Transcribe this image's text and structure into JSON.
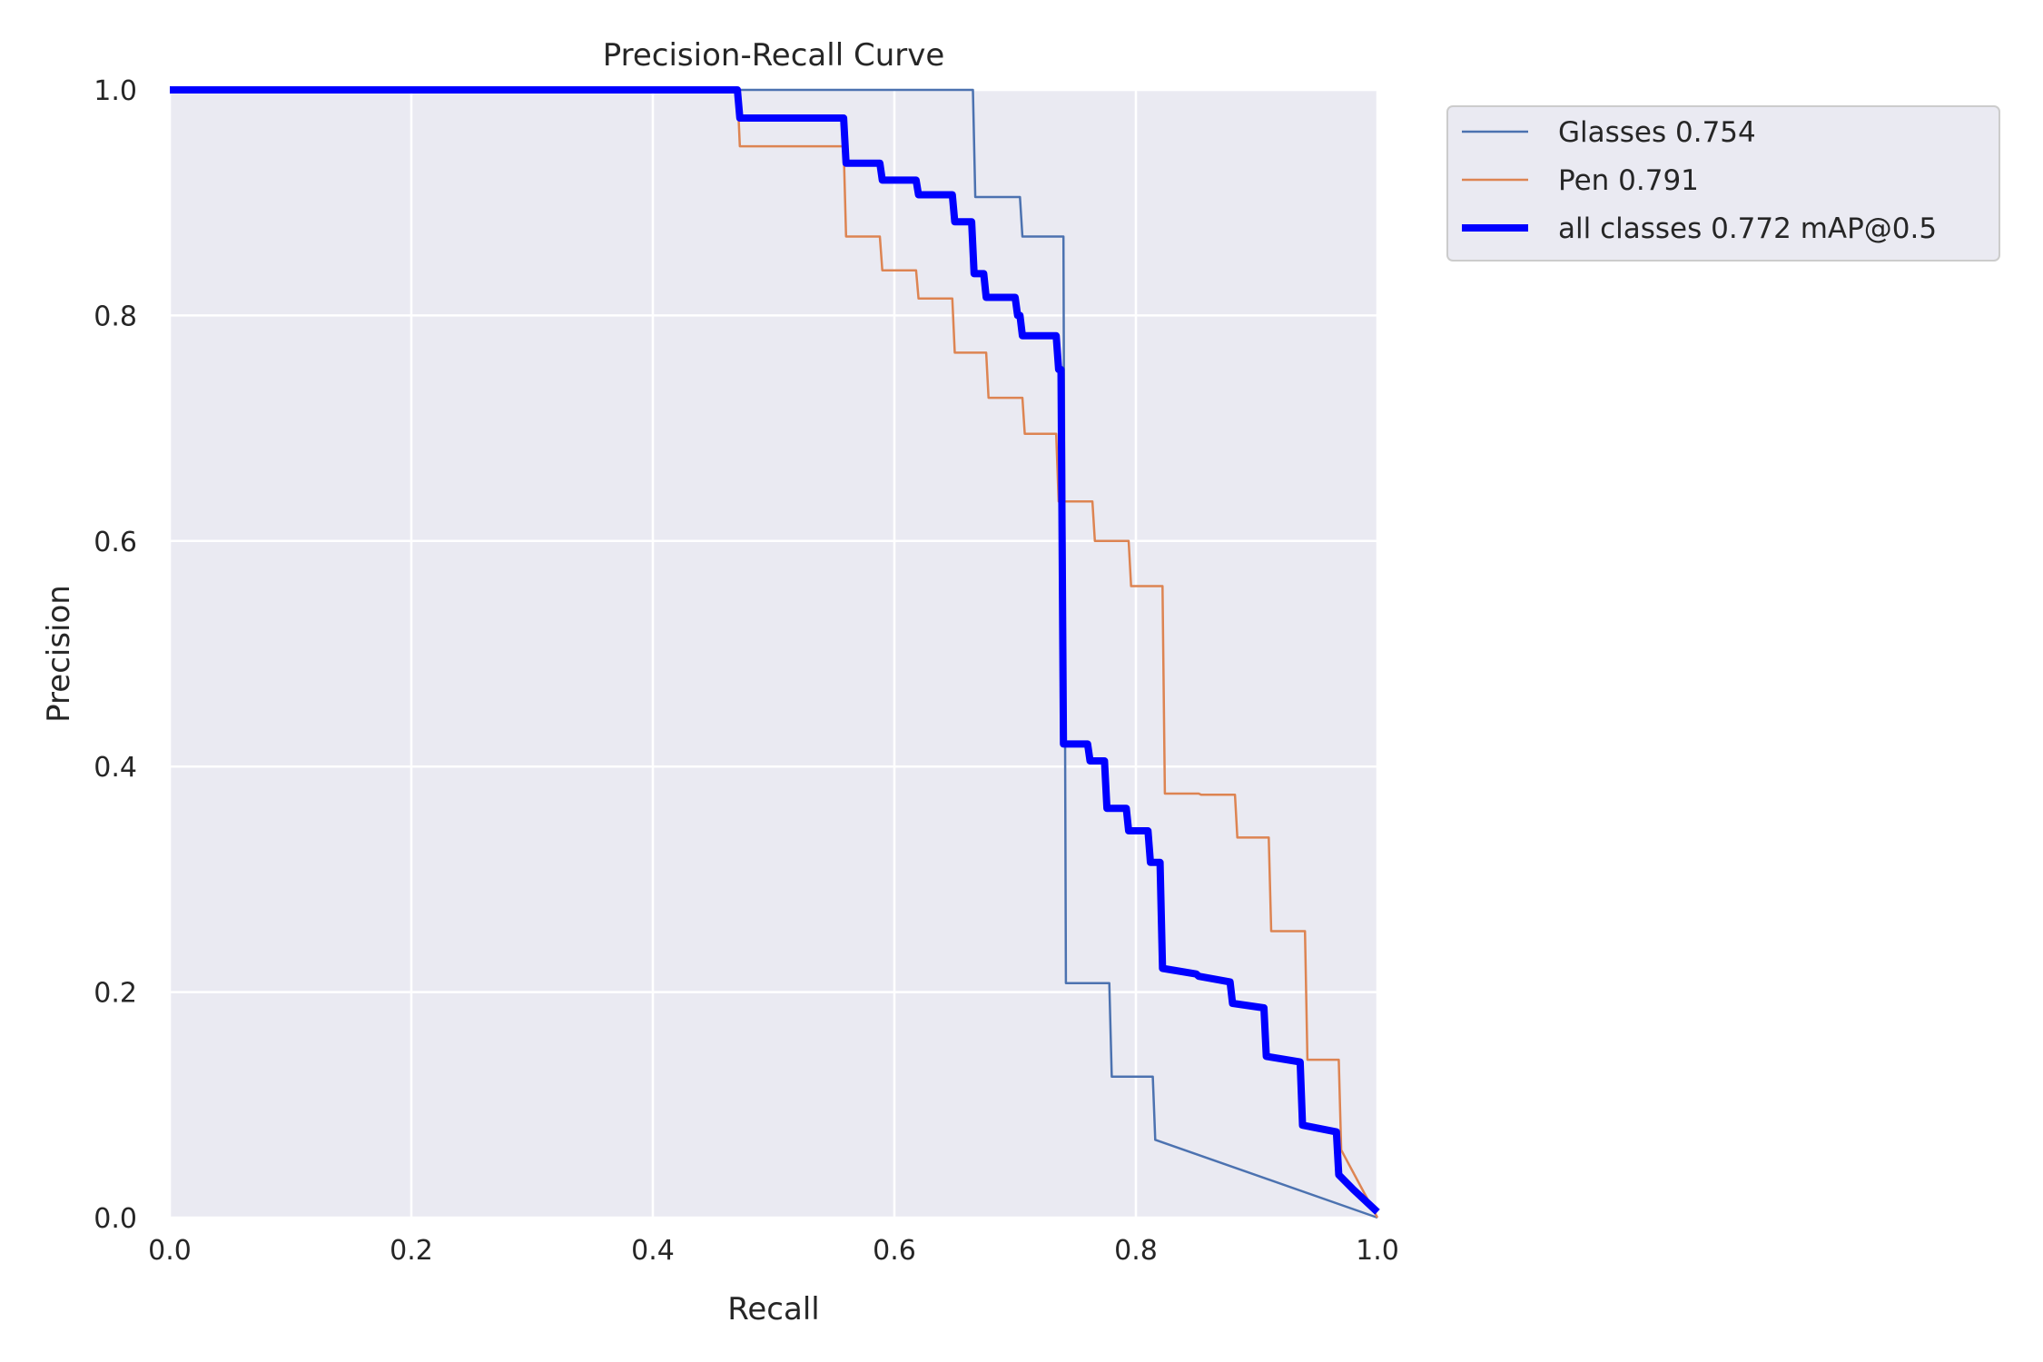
{
  "chart_data": {
    "type": "line",
    "title": "Precision-Recall Curve",
    "xlabel": "Recall",
    "ylabel": "Precision",
    "xlim": [
      0,
      1
    ],
    "ylim": [
      0,
      1
    ],
    "x_ticks": [
      "0.0",
      "0.2",
      "0.4",
      "0.6",
      "0.8",
      "1.0"
    ],
    "y_ticks": [
      "0.0",
      "0.2",
      "0.4",
      "0.6",
      "0.8",
      "1.0"
    ],
    "grid": true,
    "legend_position": "outside-top-right",
    "series": [
      {
        "name": "Glasses 0.754",
        "color": "#4c72b0",
        "width": "thin",
        "points": [
          [
            0,
            1.0
          ],
          [
            0.665,
            1.0
          ],
          [
            0.667,
            0.905
          ],
          [
            0.704,
            0.905
          ],
          [
            0.706,
            0.87
          ],
          [
            0.74,
            0.87
          ],
          [
            0.742,
            0.208
          ],
          [
            0.778,
            0.208
          ],
          [
            0.78,
            0.125
          ],
          [
            0.814,
            0.125
          ],
          [
            0.816,
            0.069
          ],
          [
            1.0,
            0.0
          ]
        ]
      },
      {
        "name": "Pen 0.791",
        "color": "#dd8452",
        "width": "thin",
        "points": [
          [
            0,
            1.0
          ],
          [
            0.47,
            1.0
          ],
          [
            0.472,
            0.95
          ],
          [
            0.558,
            0.95
          ],
          [
            0.56,
            0.87
          ],
          [
            0.588,
            0.87
          ],
          [
            0.59,
            0.84
          ],
          [
            0.618,
            0.84
          ],
          [
            0.62,
            0.815
          ],
          [
            0.648,
            0.815
          ],
          [
            0.65,
            0.767
          ],
          [
            0.676,
            0.767
          ],
          [
            0.678,
            0.727
          ],
          [
            0.706,
            0.727
          ],
          [
            0.708,
            0.695
          ],
          [
            0.734,
            0.695
          ],
          [
            0.736,
            0.635
          ],
          [
            0.764,
            0.635
          ],
          [
            0.766,
            0.6
          ],
          [
            0.794,
            0.6
          ],
          [
            0.796,
            0.56
          ],
          [
            0.822,
            0.56
          ],
          [
            0.824,
            0.376
          ],
          [
            0.852,
            0.376
          ],
          [
            0.854,
            0.375
          ],
          [
            0.882,
            0.375
          ],
          [
            0.884,
            0.337
          ],
          [
            0.91,
            0.337
          ],
          [
            0.912,
            0.254
          ],
          [
            0.94,
            0.254
          ],
          [
            0.942,
            0.14
          ],
          [
            0.968,
            0.14
          ],
          [
            0.97,
            0.06
          ],
          [
            1.0,
            0.0
          ]
        ]
      },
      {
        "name": "all classes 0.772 mAP@0.5",
        "color": "#0000ff",
        "width": "thick",
        "points": [
          [
            0,
            1.0
          ],
          [
            0.47,
            1.0
          ],
          [
            0.472,
            0.975
          ],
          [
            0.558,
            0.975
          ],
          [
            0.56,
            0.935
          ],
          [
            0.588,
            0.935
          ],
          [
            0.59,
            0.92
          ],
          [
            0.618,
            0.92
          ],
          [
            0.62,
            0.907
          ],
          [
            0.648,
            0.907
          ],
          [
            0.65,
            0.883
          ],
          [
            0.664,
            0.883
          ],
          [
            0.666,
            0.837
          ],
          [
            0.674,
            0.837
          ],
          [
            0.676,
            0.816
          ],
          [
            0.7,
            0.816
          ],
          [
            0.702,
            0.8
          ],
          [
            0.704,
            0.8
          ],
          [
            0.706,
            0.782
          ],
          [
            0.734,
            0.782
          ],
          [
            0.736,
            0.752
          ],
          [
            0.738,
            0.752
          ],
          [
            0.74,
            0.42
          ],
          [
            0.76,
            0.42
          ],
          [
            0.762,
            0.405
          ],
          [
            0.774,
            0.405
          ],
          [
            0.776,
            0.363
          ],
          [
            0.792,
            0.363
          ],
          [
            0.794,
            0.343
          ],
          [
            0.81,
            0.343
          ],
          [
            0.812,
            0.315
          ],
          [
            0.82,
            0.315
          ],
          [
            0.822,
            0.221
          ],
          [
            0.85,
            0.216
          ],
          [
            0.852,
            0.214
          ],
          [
            0.878,
            0.209
          ],
          [
            0.88,
            0.19
          ],
          [
            0.906,
            0.186
          ],
          [
            0.908,
            0.143
          ],
          [
            0.936,
            0.138
          ],
          [
            0.938,
            0.082
          ],
          [
            0.966,
            0.076
          ],
          [
            0.968,
            0.038
          ],
          [
            0.98,
            0.025
          ],
          [
            1.0,
            0.005
          ]
        ]
      }
    ]
  }
}
